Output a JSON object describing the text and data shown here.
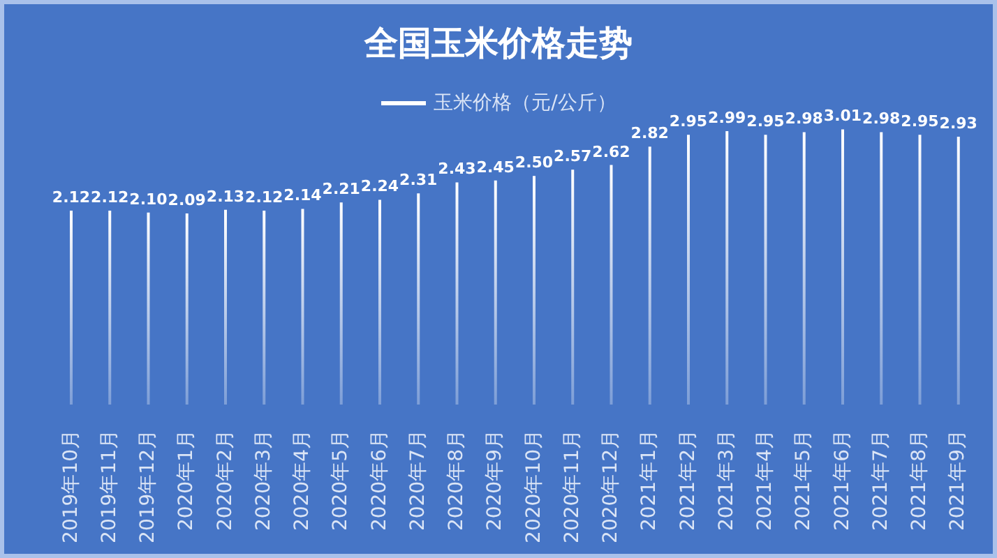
{
  "chart_data": {
    "type": "bar",
    "title": "全国玉米价格走势",
    "categories": [
      "2019年10月",
      "2019年11月",
      "2019年12月",
      "2020年1月",
      "2020年2月",
      "2020年3月",
      "2020年4月",
      "2020年5月",
      "2020年6月",
      "2020年7月",
      "2020年8月",
      "2020年9月",
      "2020年10月",
      "2020年11月",
      "2020年12月",
      "2021年1月",
      "2021年2月",
      "2021年3月",
      "2021年4月",
      "2021年5月",
      "2021年6月",
      "2021年7月",
      "2021年8月",
      "2021年9月"
    ],
    "series": [
      {
        "name": "玉米价格（元/公斤）",
        "color": "#ffffff",
        "values": [
          2.12,
          2.12,
          2.1,
          2.09,
          2.13,
          2.12,
          2.14,
          2.21,
          2.24,
          2.31,
          2.43,
          2.45,
          2.5,
          2.57,
          2.62,
          2.82,
          2.95,
          2.99,
          2.95,
          2.98,
          3.01,
          2.98,
          2.95,
          2.93
        ],
        "value_labels": [
          "2.12",
          "2.12",
          "2.10",
          "2.09",
          "2.13",
          "2.12",
          "2.14",
          "2.21",
          "2.24",
          "2.31",
          "2.43",
          "2.45",
          "2.50",
          "2.57",
          "2.62",
          "2.82",
          "2.95",
          "2.99",
          "2.95",
          "2.98",
          "3.01",
          "2.98",
          "2.95",
          "2.93"
        ]
      }
    ],
    "legend": "top"
  }
}
